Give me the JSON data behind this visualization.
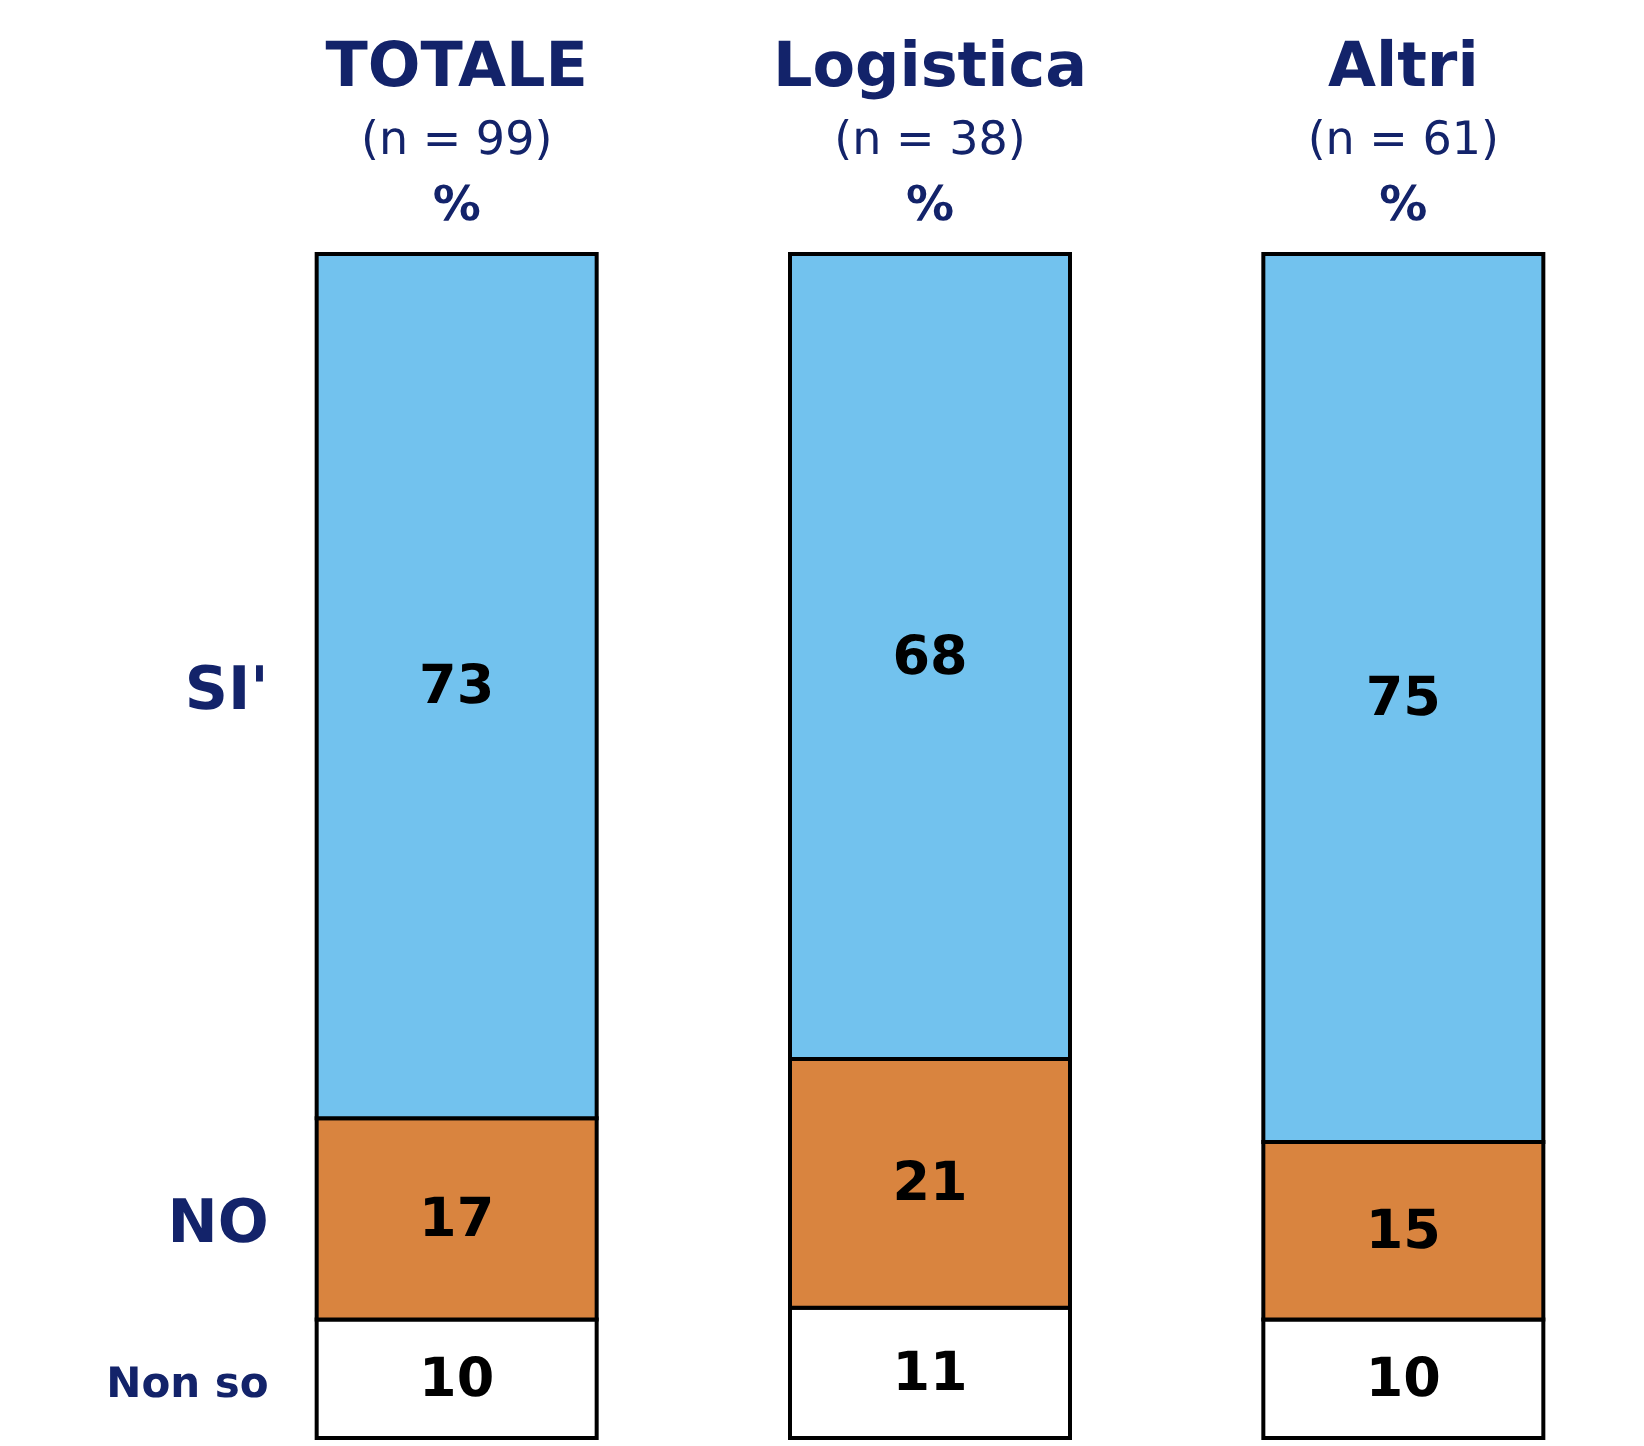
{
  "chart_data": {
    "type": "bar",
    "stacked": true,
    "data_labels": true,
    "tick_labels": "x",
    "categories": [
      "TOTALE\n(n = 99)\n%",
      "Logistica\n(n = 38)\n%",
      "Altri\n(n = 61)\n%"
    ],
    "series": [
      {
        "name": "Non so",
        "color": "#ffffff",
        "values": [
          10,
          11,
          10
        ]
      },
      {
        "name": "NO",
        "color": "#d9843f",
        "values": [
          17,
          21,
          15
        ]
      },
      {
        "name": "SI'",
        "color": "#72c2ee",
        "values": [
          73,
          68,
          75
        ]
      }
    ]
  }
}
